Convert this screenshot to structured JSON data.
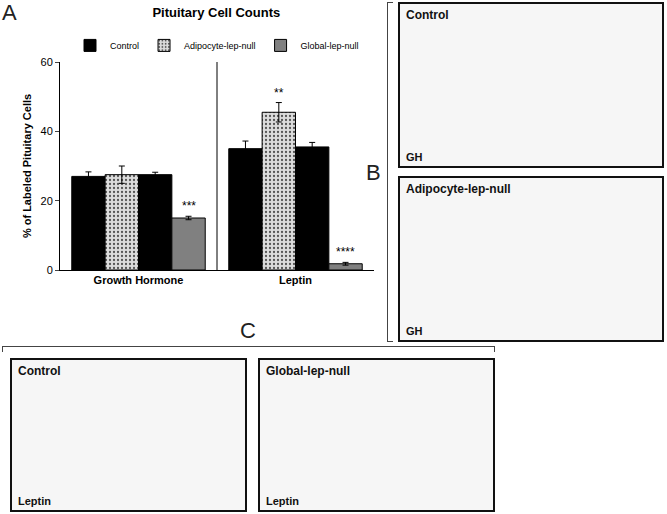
{
  "panel_labels": [
    "A",
    "B",
    "C"
  ],
  "chart_data": {
    "type": "bar",
    "title": "Pituitary Cell Counts",
    "ylabel": "% of Labeled Pituitary Cells",
    "categories": [
      "Growth Hormone",
      "Leptin"
    ],
    "ylim": [
      0,
      60
    ],
    "yticks": [
      0,
      20,
      40,
      60
    ],
    "grid": false,
    "legend": "top",
    "series": [
      {
        "name": "Control",
        "color": "#000000",
        "values": [
          27,
          35
        ],
        "errors": [
          1.3,
          2.2
        ]
      },
      {
        "name": "Adipocyte-lep-null",
        "color": "#dcdcdc",
        "marker": "dotted",
        "values": [
          27.5,
          45.5
        ],
        "errors": [
          2.5,
          2.8
        ],
        "significance": [
          null,
          "**"
        ]
      },
      {
        "name": "Control",
        "color": "#000000",
        "values": [
          27.5,
          35.5
        ],
        "errors": [
          0.7,
          1.3
        ]
      },
      {
        "name": "Global-lep-null",
        "color": "#808080",
        "values": [
          15,
          1.8
        ],
        "errors": [
          0.5,
          0.4
        ],
        "significance": [
          "***",
          "****"
        ]
      }
    ]
  },
  "micrographs": {
    "B": [
      {
        "label": "Control",
        "stain": "GH"
      },
      {
        "label": "Adipocyte-lep-null",
        "stain": "GH"
      }
    ],
    "C": [
      {
        "label": "Control",
        "stain": "Leptin"
      },
      {
        "label": "Global-lep-null",
        "stain": "Leptin"
      }
    ]
  }
}
